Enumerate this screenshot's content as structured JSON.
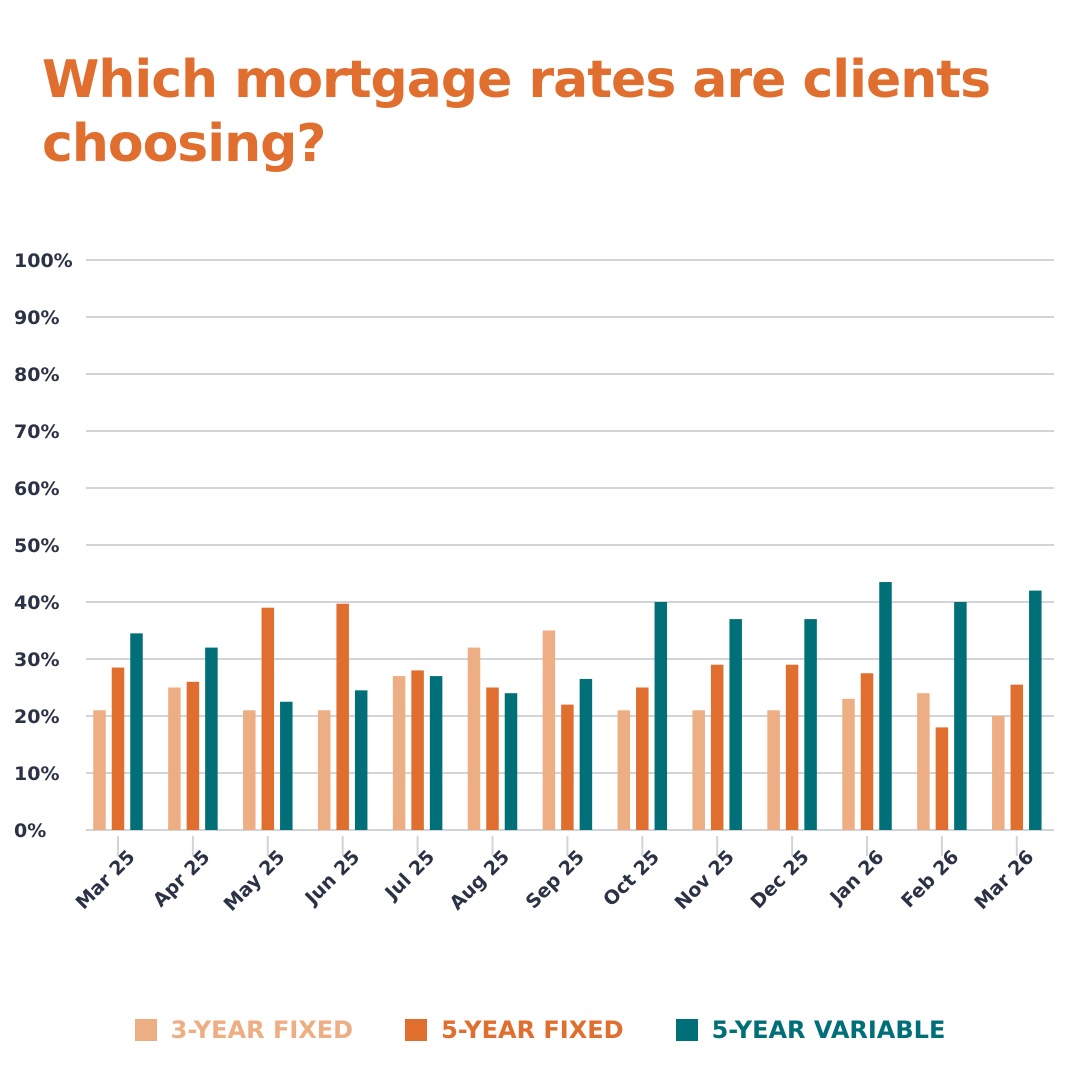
{
  "title": "Which mortgage rates are clients choosing?",
  "colors": {
    "title": "#E06E2E",
    "axis_text": "#2B3245",
    "grid": "#D2D4D8",
    "series": [
      "#EEAE84",
      "#E06E2E",
      "#016F78"
    ]
  },
  "chart_data": {
    "type": "bar",
    "title": "Which mortgage rates are clients choosing?",
    "xlabel": "",
    "ylabel": "",
    "ylim": [
      0,
      100
    ],
    "y_ticks": [
      "0%",
      "10%",
      "20%",
      "30%",
      "40%",
      "50%",
      "60%",
      "70%",
      "80%",
      "90%",
      "100%"
    ],
    "grid": true,
    "legend_position": "bottom",
    "categories": [
      "Mar 25",
      "Apr 25",
      "May 25",
      "Jun 25",
      "Jul 25",
      "Aug 25",
      "Sep 25",
      "Oct 25",
      "Nov 25",
      "Dec 25",
      "Jan 26",
      "Feb 26",
      "Mar 26"
    ],
    "series": [
      {
        "name": "3-YEAR FIXED",
        "values": [
          21,
          25,
          21,
          21,
          27,
          32,
          35,
          21,
          21,
          21,
          23,
          24,
          20
        ]
      },
      {
        "name": "5-YEAR FIXED",
        "values": [
          28.5,
          26,
          39,
          39.7,
          28,
          25,
          22,
          25,
          29,
          29,
          27.5,
          18,
          25.5
        ]
      },
      {
        "name": "5-YEAR VARIABLE",
        "values": [
          34.5,
          32,
          22.5,
          24.5,
          27,
          24,
          26.5,
          40,
          37,
          37,
          43.5,
          40,
          42
        ]
      }
    ]
  },
  "legend": [
    {
      "label": "3-YEAR FIXED"
    },
    {
      "label": "5-YEAR FIXED"
    },
    {
      "label": "5-YEAR VARIABLE"
    }
  ]
}
